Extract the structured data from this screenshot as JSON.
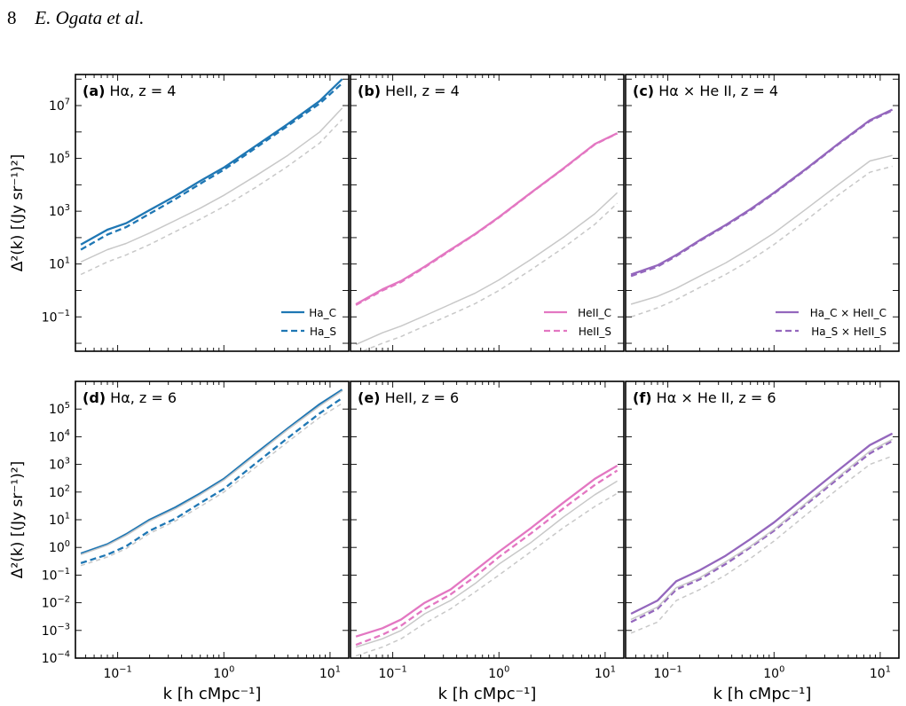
{
  "header": {
    "page_number": "8",
    "authors": "E. Ogata et al."
  },
  "chart_data": [
    {
      "type": "line",
      "panel": "a",
      "title_letter": "(a)",
      "title_text": "Hα, z = 4",
      "xscale": "log",
      "yscale": "log",
      "xlim": [
        0.04,
        15
      ],
      "ylim": [
        0.005,
        150000000
      ],
      "xlabel": "",
      "ylabel": "Δ²(k) [(Jy sr⁻¹)²]",
      "xticks": [],
      "yticks": [
        {
          "v": 0.1,
          "m": "10",
          "e": "−1"
        },
        {
          "v": 10,
          "m": "10",
          "e": "1"
        },
        {
          "v": 1000,
          "m": "10",
          "e": "3"
        },
        {
          "v": 100000,
          "m": "10",
          "e": "5"
        },
        {
          "v": 10000000,
          "m": "10",
          "e": "7"
        }
      ],
      "legend_location": "lower right",
      "series": [
        {
          "name": "Ha_C",
          "style": "solid",
          "color": "#1f77b4",
          "legend": true,
          "x": [
            0.045,
            0.08,
            0.12,
            0.2,
            0.35,
            0.6,
            1,
            2,
            4,
            8,
            13
          ],
          "y": [
            55,
            200,
            350,
            1100,
            3800,
            14000,
            45000,
            300000,
            2000000,
            15000000,
            100000000
          ]
        },
        {
          "name": "Ha_S",
          "style": "dashed",
          "color": "#1f77b4",
          "legend": true,
          "x": [
            0.045,
            0.08,
            0.12,
            0.2,
            0.35,
            0.6,
            1,
            2,
            4,
            8,
            13
          ],
          "y": [
            35,
            130,
            250,
            800,
            2900,
            11000,
            37000,
            250000,
            1700000,
            12000000,
            70000000
          ]
        },
        {
          "style": "solid",
          "color": "#c8c8c8",
          "legend": false,
          "x": [
            0.045,
            0.08,
            0.12,
            0.2,
            0.35,
            0.6,
            1,
            2,
            4,
            8,
            13
          ],
          "y": [
            12,
            35,
            60,
            150,
            450,
            1300,
            4000,
            22000,
            130000,
            1000000,
            8000000
          ]
        },
        {
          "style": "dashed",
          "color": "#c8c8c8",
          "legend": false,
          "x": [
            0.045,
            0.08,
            0.12,
            0.2,
            0.35,
            0.6,
            1,
            2,
            4,
            8,
            13
          ],
          "y": [
            4,
            12,
            22,
            55,
            170,
            500,
            1500,
            8000,
            50000,
            380000,
            3000000
          ]
        }
      ]
    },
    {
      "type": "line",
      "panel": "b",
      "title_letter": "(b)",
      "title_text": "HeII, z = 4",
      "xscale": "log",
      "yscale": "log",
      "xlim": [
        0.04,
        15
      ],
      "ylim": [
        0.005,
        150000000
      ],
      "xlabel": "",
      "ylabel": "",
      "xticks": [],
      "yticks": [],
      "legend_location": "lower right",
      "series": [
        {
          "name": "HeII_C",
          "style": "solid",
          "color": "#e377c2",
          "legend": true,
          "x": [
            0.045,
            0.08,
            0.12,
            0.2,
            0.35,
            0.6,
            1,
            2,
            4,
            8,
            13
          ],
          "y": [
            0.3,
            1.1,
            2.3,
            8,
            35,
            140,
            600,
            5000,
            40000,
            350000,
            900000
          ]
        },
        {
          "name": "HeII_S",
          "style": "dashed",
          "color": "#e377c2",
          "legend": true,
          "x": [
            0.045,
            0.08,
            0.12,
            0.2,
            0.35,
            0.6,
            1,
            2,
            4,
            8,
            13
          ],
          "y": [
            0.28,
            1.0,
            2.1,
            7.5,
            33,
            135,
            580,
            4900,
            39000,
            340000,
            880000
          ]
        },
        {
          "style": "solid",
          "color": "#c8c8c8",
          "legend": false,
          "x": [
            0.045,
            0.08,
            0.12,
            0.2,
            0.35,
            0.6,
            1,
            2,
            4,
            8,
            13
          ],
          "y": [
            0.009,
            0.025,
            0.045,
            0.11,
            0.3,
            0.8,
            2.5,
            15,
            100,
            800,
            5000
          ]
        },
        {
          "style": "dashed",
          "color": "#c8c8c8",
          "legend": false,
          "x": [
            0.045,
            0.08,
            0.12,
            0.2,
            0.35,
            0.6,
            1,
            2,
            4,
            8,
            13
          ],
          "y": [
            0.004,
            0.01,
            0.018,
            0.045,
            0.12,
            0.32,
            1.0,
            6,
            40,
            320,
            2000
          ]
        }
      ]
    },
    {
      "type": "line",
      "panel": "c",
      "title_letter": "(c)",
      "title_text": "Hα × He II, z = 4",
      "xscale": "log",
      "yscale": "log",
      "xlim": [
        0.04,
        15
      ],
      "ylim": [
        0.005,
        150000000
      ],
      "xlabel": "",
      "ylabel": "",
      "xticks": [],
      "yticks": [],
      "legend_location": "lower right",
      "series": [
        {
          "name": "Ha_C × HeII_C",
          "style": "solid",
          "color": "#9467bd",
          "legend": true,
          "x": [
            0.045,
            0.08,
            0.12,
            0.2,
            0.35,
            0.6,
            1,
            2,
            4,
            8,
            13
          ],
          "y": [
            4,
            9,
            22,
            80,
            300,
            1200,
            5000,
            40000,
            350000,
            2800000,
            7000000
          ]
        },
        {
          "name": "Ha_S × HeII_S",
          "style": "dashed",
          "color": "#9467bd",
          "legend": true,
          "x": [
            0.045,
            0.08,
            0.12,
            0.2,
            0.35,
            0.6,
            1,
            2,
            4,
            8,
            13
          ],
          "y": [
            3.5,
            8,
            20,
            75,
            280,
            1100,
            4700,
            38000,
            330000,
            2600000,
            6500000
          ]
        },
        {
          "style": "solid",
          "color": "#c8c8c8",
          "legend": false,
          "x": [
            0.045,
            0.08,
            0.12,
            0.2,
            0.35,
            0.6,
            1,
            2,
            4,
            8,
            13
          ],
          "y": [
            0.3,
            0.6,
            1.2,
            3.5,
            11,
            40,
            150,
            1200,
            10000,
            80000,
            130000
          ]
        },
        {
          "style": "dashed",
          "color": "#c8c8c8",
          "legend": false,
          "x": [
            0.045,
            0.08,
            0.12,
            0.2,
            0.35,
            0.6,
            1,
            2,
            4,
            8,
            13
          ],
          "y": [
            0.1,
            0.22,
            0.45,
            1.3,
            4,
            14,
            55,
            450,
            4000,
            30000,
            50000
          ]
        }
      ]
    },
    {
      "type": "line",
      "panel": "d",
      "title_letter": "(d)",
      "title_text": "Hα, z = 6",
      "xscale": "log",
      "yscale": "log",
      "xlim": [
        0.04,
        15
      ],
      "ylim": [
        0.0001,
        1000000
      ],
      "xlabel": "k [h cMpc⁻¹]",
      "ylabel": "Δ²(k) [(Jy sr⁻¹)²]",
      "xticks": [
        {
          "v": 0.1,
          "m": "10",
          "e": "−1"
        },
        {
          "v": 1,
          "m": "10",
          "e": "0"
        },
        {
          "v": 10,
          "m": "10",
          "e": "1"
        }
      ],
      "yticks": [
        {
          "v": 0.0001,
          "m": "10",
          "e": "−4"
        },
        {
          "v": 0.001,
          "m": "10",
          "e": "−3"
        },
        {
          "v": 0.01,
          "m": "10",
          "e": "−2"
        },
        {
          "v": 0.1,
          "m": "10",
          "e": "−1"
        },
        {
          "v": 1,
          "m": "10",
          "e": "0"
        },
        {
          "v": 10,
          "m": "10",
          "e": "1"
        },
        {
          "v": 100,
          "m": "10",
          "e": "2"
        },
        {
          "v": 1000,
          "m": "10",
          "e": "3"
        },
        {
          "v": 10000,
          "m": "10",
          "e": "4"
        },
        {
          "v": 100000,
          "m": "10",
          "e": "5"
        }
      ],
      "legend_location": "none",
      "series": [
        {
          "style": "solid",
          "color": "#1f77b4",
          "x": [
            0.045,
            0.08,
            0.12,
            0.2,
            0.35,
            0.6,
            1,
            2,
            4,
            8,
            13
          ],
          "y": [
            0.6,
            1.3,
            3,
            10,
            28,
            90,
            300,
            2500,
            20000,
            150000,
            500000
          ]
        },
        {
          "style": "dashed",
          "color": "#1f77b4",
          "x": [
            0.045,
            0.08,
            0.12,
            0.2,
            0.35,
            0.6,
            1,
            2,
            4,
            8,
            13
          ],
          "y": [
            0.27,
            0.55,
            1.1,
            4,
            11,
            40,
            130,
            1100,
            9000,
            70000,
            250000
          ]
        },
        {
          "style": "solid",
          "color": "#c8c8c8",
          "x": [
            0.045,
            0.08,
            0.12,
            0.2,
            0.35,
            0.6,
            1,
            2,
            4,
            8,
            13
          ],
          "y": [
            0.55,
            1.2,
            2.7,
            9,
            25,
            80,
            270,
            2200,
            18000,
            130000,
            450000
          ]
        },
        {
          "style": "dashed",
          "color": "#c8c8c8",
          "x": [
            0.045,
            0.08,
            0.12,
            0.2,
            0.35,
            0.6,
            1,
            2,
            4,
            8,
            13
          ],
          "y": [
            0.22,
            0.45,
            0.9,
            3.2,
            9,
            30,
            100,
            800,
            6500,
            50000,
            160000
          ]
        }
      ]
    },
    {
      "type": "line",
      "panel": "e",
      "title_letter": "(e)",
      "title_text": "HeII, z = 6",
      "xscale": "log",
      "yscale": "log",
      "xlim": [
        0.04,
        15
      ],
      "ylim": [
        0.0001,
        1000000
      ],
      "xlabel": "k [h cMpc⁻¹]",
      "ylabel": "",
      "xticks": [
        {
          "v": 0.1,
          "m": "10",
          "e": "−1"
        },
        {
          "v": 1,
          "m": "10",
          "e": "0"
        },
        {
          "v": 10,
          "m": "10",
          "e": "1"
        }
      ],
      "yticks": [],
      "legend_location": "none",
      "series": [
        {
          "style": "solid",
          "color": "#e377c2",
          "x": [
            0.045,
            0.08,
            0.12,
            0.2,
            0.35,
            0.6,
            1,
            2,
            4,
            8,
            13
          ],
          "y": [
            0.0006,
            0.0012,
            0.0025,
            0.01,
            0.03,
            0.15,
            0.7,
            5,
            40,
            300,
            900
          ]
        },
        {
          "style": "dashed",
          "color": "#e377c2",
          "x": [
            0.045,
            0.08,
            0.12,
            0.2,
            0.35,
            0.6,
            1,
            2,
            4,
            8,
            13
          ],
          "y": [
            0.0003,
            0.0007,
            0.0015,
            0.006,
            0.02,
            0.09,
            0.45,
            3.2,
            25,
            180,
            600
          ]
        },
        {
          "style": "solid",
          "color": "#c8c8c8",
          "x": [
            0.045,
            0.08,
            0.12,
            0.2,
            0.35,
            0.6,
            1,
            2,
            4,
            8,
            13
          ],
          "y": [
            0.00025,
            0.0005,
            0.001,
            0.004,
            0.012,
            0.05,
            0.25,
            1.5,
            12,
            80,
            250
          ]
        },
        {
          "style": "dashed",
          "color": "#c8c8c8",
          "x": [
            0.045,
            0.08,
            0.12,
            0.2,
            0.35,
            0.6,
            1,
            2,
            4,
            8,
            13
          ],
          "y": [
            0.00012,
            0.00025,
            0.0005,
            0.0018,
            0.006,
            0.025,
            0.1,
            0.7,
            5,
            30,
            90
          ]
        }
      ]
    },
    {
      "type": "line",
      "panel": "f",
      "title_letter": "(f)",
      "title_text": "Hα × He II, z = 6",
      "xscale": "log",
      "yscale": "log",
      "xlim": [
        0.04,
        15
      ],
      "ylim": [
        0.0001,
        1000000
      ],
      "xlabel": "k [h cMpc⁻¹]",
      "ylabel": "",
      "xticks": [
        {
          "v": 0.1,
          "m": "10",
          "e": "−1"
        },
        {
          "v": 1,
          "m": "10",
          "e": "0"
        },
        {
          "v": 10,
          "m": "10",
          "e": "1"
        }
      ],
      "yticks": [],
      "legend_location": "none",
      "series": [
        {
          "style": "solid",
          "color": "#9467bd",
          "x": [
            0.045,
            0.08,
            0.12,
            0.2,
            0.35,
            0.6,
            1,
            2,
            4,
            8,
            13
          ],
          "y": [
            0.004,
            0.012,
            0.06,
            0.15,
            0.5,
            2,
            8,
            70,
            600,
            5000,
            13000
          ]
        },
        {
          "style": "dashed",
          "color": "#9467bd",
          "x": [
            0.045,
            0.08,
            0.12,
            0.2,
            0.35,
            0.6,
            1,
            2,
            4,
            8,
            13
          ],
          "y": [
            0.002,
            0.006,
            0.03,
            0.07,
            0.25,
            1,
            4,
            35,
            300,
            2500,
            7000
          ]
        },
        {
          "style": "solid",
          "color": "#c8c8c8",
          "x": [
            0.045,
            0.08,
            0.12,
            0.2,
            0.35,
            0.6,
            1,
            2,
            4,
            8,
            13
          ],
          "y": [
            0.0025,
            0.007,
            0.035,
            0.08,
            0.3,
            1.1,
            4.5,
            40,
            350,
            3000,
            8000
          ]
        },
        {
          "style": "dashed",
          "color": "#c8c8c8",
          "x": [
            0.045,
            0.08,
            0.12,
            0.2,
            0.35,
            0.6,
            1,
            2,
            4,
            8,
            13
          ],
          "y": [
            0.0008,
            0.002,
            0.012,
            0.03,
            0.1,
            0.4,
            1.7,
            15,
            130,
            1000,
            2000
          ]
        }
      ]
    }
  ]
}
